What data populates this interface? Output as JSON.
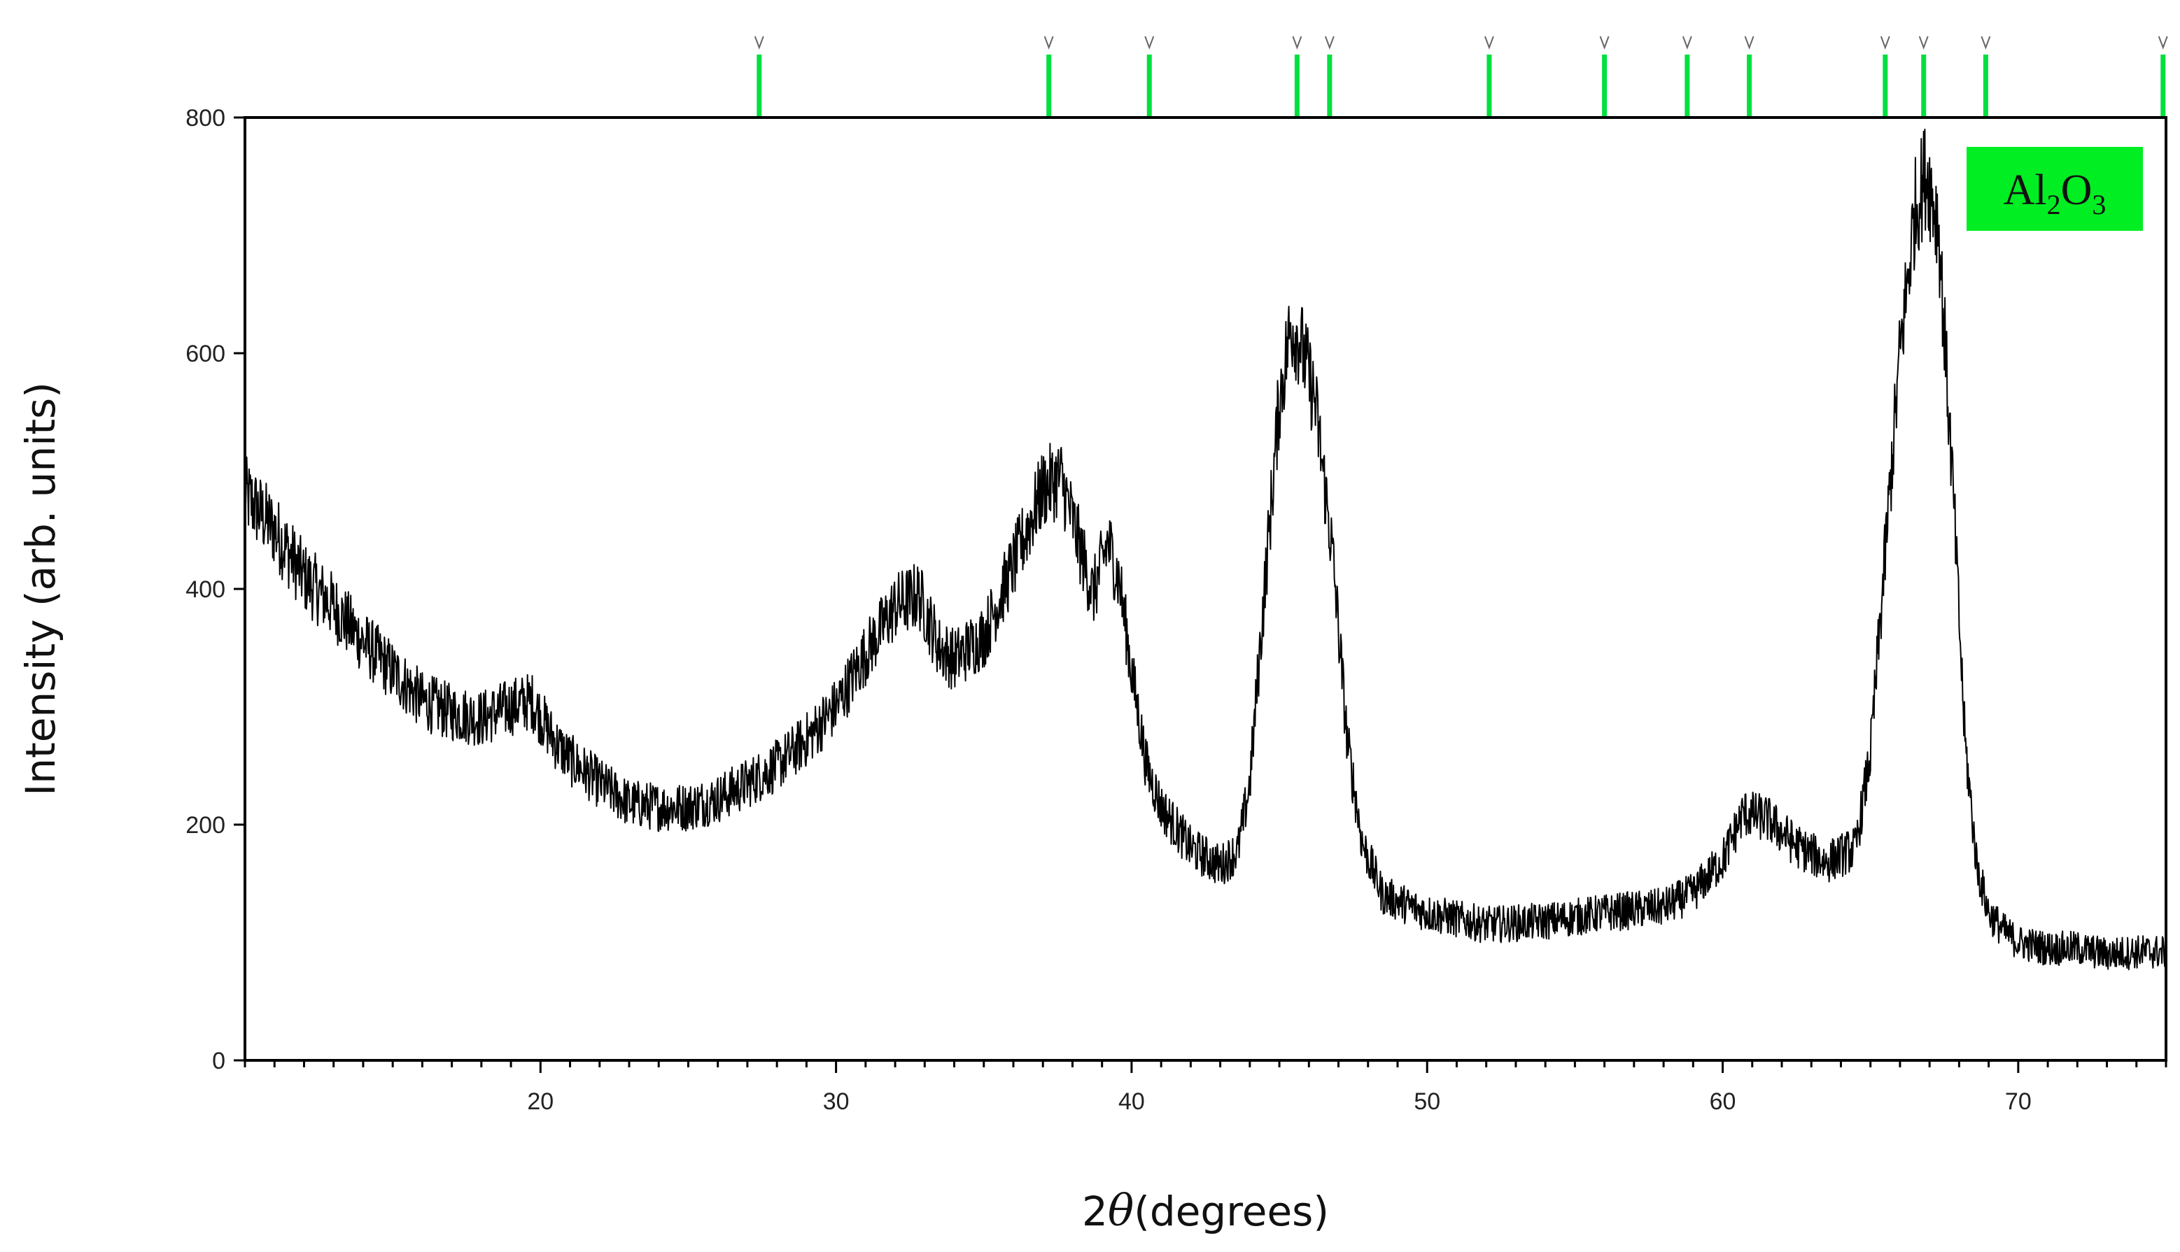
{
  "chart_data": {
    "type": "line",
    "xlabel_prefix": "2",
    "xlabel_symbol": "θ",
    "xlabel_suffix": "(degrees)",
    "ylabel": "Intensity (arb. units)",
    "xlim": [
      10,
      75
    ],
    "ylim": [
      0,
      800
    ],
    "x_ticks": [
      20,
      30,
      40,
      50,
      60,
      70
    ],
    "y_ticks": [
      0,
      200,
      400,
      600,
      800
    ],
    "grid": false,
    "legend": {
      "parts": [
        {
          "text": "Al",
          "sub": false
        },
        {
          "text": "2",
          "sub": true
        },
        {
          "text": "O",
          "sub": false
        },
        {
          "text": "3",
          "sub": true
        }
      ],
      "placement": "top-right",
      "color": "#00ee22"
    },
    "line_color": "#000000",
    "reference_marker_color": "#00e040",
    "reference_positions": [
      27.4,
      37.2,
      40.6,
      45.6,
      46.7,
      52.1,
      56.0,
      58.8,
      60.9,
      65.5,
      66.8,
      68.9,
      74.9
    ],
    "series": [
      {
        "x": [
          10,
          11,
          12,
          13,
          14,
          15,
          16,
          17,
          18,
          19,
          19.7,
          20.5,
          21,
          22,
          23,
          24,
          25,
          26,
          27,
          28,
          29,
          30,
          31,
          32,
          32.8,
          33.5,
          34,
          35,
          36,
          37,
          37.6,
          38.2,
          38.7,
          39.2,
          39.6,
          40,
          40.5,
          41,
          42,
          43,
          43.6,
          44,
          44.5,
          45,
          45.4,
          45.7,
          46.2,
          46.8,
          47.3,
          47.8,
          48.5,
          50,
          52,
          54,
          56,
          58,
          59,
          60,
          60.7,
          61.5,
          62.5,
          63.5,
          64.5,
          65,
          65.5,
          66,
          66.5,
          66.9,
          67.3,
          67.8,
          68.2,
          68.6,
          69,
          69.5,
          70,
          71,
          72,
          73,
          74,
          75
        ],
        "y": [
          480,
          450,
          410,
          385,
          355,
          330,
          305,
          295,
          290,
          300,
          305,
          270,
          255,
          235,
          218,
          215,
          215,
          222,
          235,
          250,
          272,
          300,
          345,
          385,
          395,
          350,
          340,
          360,
          420,
          485,
          495,
          440,
          395,
          440,
          405,
          330,
          250,
          215,
          180,
          165,
          178,
          235,
          400,
          560,
          625,
          610,
          560,
          430,
          270,
          185,
          140,
          125,
          115,
          118,
          125,
          130,
          142,
          170,
          210,
          205,
          182,
          168,
          180,
          260,
          430,
          600,
          720,
          755,
          710,
          480,
          270,
          165,
          125,
          110,
          100,
          95,
          95,
          90,
          92,
          92
        ]
      }
    ]
  }
}
